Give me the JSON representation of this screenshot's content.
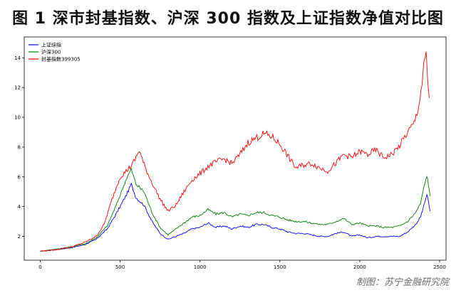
{
  "title": "图 1 深市封基指数、沪深 300 指数及上证指数净值对比图",
  "source": "制图：苏宁金融研究院",
  "colors": {
    "blue": "#0000ff",
    "green": "#008000",
    "red": "#ff0000",
    "axis": "#000000"
  },
  "chart_data": {
    "type": "line",
    "title": "图 1 深市封基指数、沪深 300 指数及上证指数净值对比图",
    "xlabel": "",
    "ylabel": "",
    "xlim": [
      -100,
      2540
    ],
    "ylim": [
      0.4,
      15.4
    ],
    "xticks": [
      0,
      500,
      1000,
      1500,
      2000,
      2500
    ],
    "yticks": [
      2,
      4,
      6,
      8,
      10,
      12,
      14
    ],
    "grid": false,
    "legend": "top-left",
    "series": [
      {
        "name": "上证综指",
        "color": "#0000ff",
        "points": [
          [
            0,
            1.0
          ],
          [
            100,
            1.1
          ],
          [
            200,
            1.25
          ],
          [
            280,
            1.45
          ],
          [
            350,
            1.8
          ],
          [
            420,
            2.5
          ],
          [
            480,
            3.6
          ],
          [
            540,
            4.8
          ],
          [
            570,
            5.5
          ],
          [
            600,
            4.6
          ],
          [
            650,
            4.1
          ],
          [
            700,
            3.0
          ],
          [
            750,
            2.2
          ],
          [
            800,
            1.8
          ],
          [
            850,
            2.0
          ],
          [
            900,
            2.2
          ],
          [
            950,
            2.5
          ],
          [
            1000,
            2.6
          ],
          [
            1050,
            2.9
          ],
          [
            1100,
            2.6
          ],
          [
            1150,
            2.7
          ],
          [
            1200,
            2.5
          ],
          [
            1250,
            2.7
          ],
          [
            1300,
            2.6
          ],
          [
            1350,
            2.8
          ],
          [
            1400,
            2.8
          ],
          [
            1450,
            2.6
          ],
          [
            1500,
            2.5
          ],
          [
            1550,
            2.3
          ],
          [
            1600,
            2.2
          ],
          [
            1650,
            2.2
          ],
          [
            1700,
            2.1
          ],
          [
            1750,
            2.0
          ],
          [
            1800,
            2.0
          ],
          [
            1850,
            2.2
          ],
          [
            1900,
            2.3
          ],
          [
            1950,
            2.0
          ],
          [
            2000,
            2.1
          ],
          [
            2050,
            1.9
          ],
          [
            2100,
            2.0
          ],
          [
            2150,
            2.0
          ],
          [
            2200,
            2.0
          ],
          [
            2250,
            2.0
          ],
          [
            2300,
            2.3
          ],
          [
            2350,
            2.8
          ],
          [
            2380,
            3.3
          ],
          [
            2400,
            4.0
          ],
          [
            2420,
            4.8
          ],
          [
            2430,
            4.3
          ],
          [
            2440,
            3.7
          ]
        ]
      },
      {
        "name": "沪深300",
        "color": "#008000",
        "points": [
          [
            0,
            1.0
          ],
          [
            100,
            1.15
          ],
          [
            200,
            1.3
          ],
          [
            280,
            1.5
          ],
          [
            350,
            1.9
          ],
          [
            420,
            2.7
          ],
          [
            480,
            4.2
          ],
          [
            540,
            5.9
          ],
          [
            570,
            6.5
          ],
          [
            600,
            5.5
          ],
          [
            650,
            5.0
          ],
          [
            700,
            3.6
          ],
          [
            750,
            2.6
          ],
          [
            800,
            2.1
          ],
          [
            850,
            2.5
          ],
          [
            900,
            2.9
          ],
          [
            950,
            3.3
          ],
          [
            1000,
            3.4
          ],
          [
            1050,
            3.8
          ],
          [
            1100,
            3.5
          ],
          [
            1150,
            3.6
          ],
          [
            1200,
            3.3
          ],
          [
            1250,
            3.5
          ],
          [
            1300,
            3.4
          ],
          [
            1350,
            3.6
          ],
          [
            1400,
            3.6
          ],
          [
            1450,
            3.4
          ],
          [
            1500,
            3.3
          ],
          [
            1550,
            3.1
          ],
          [
            1600,
            3.0
          ],
          [
            1650,
            3.0
          ],
          [
            1700,
            2.9
          ],
          [
            1750,
            2.8
          ],
          [
            1800,
            2.8
          ],
          [
            1850,
            3.0
          ],
          [
            1900,
            3.2
          ],
          [
            1950,
            2.8
          ],
          [
            2000,
            2.9
          ],
          [
            2050,
            2.7
          ],
          [
            2100,
            2.7
          ],
          [
            2150,
            2.6
          ],
          [
            2200,
            2.6
          ],
          [
            2250,
            2.7
          ],
          [
            2300,
            3.0
          ],
          [
            2350,
            3.6
          ],
          [
            2380,
            4.2
          ],
          [
            2400,
            5.2
          ],
          [
            2420,
            6.1
          ],
          [
            2430,
            5.5
          ],
          [
            2440,
            4.7
          ]
        ]
      },
      {
        "name": "封基指数399305",
        "color": "#ff0000",
        "points": [
          [
            0,
            1.0
          ],
          [
            100,
            1.1
          ],
          [
            200,
            1.3
          ],
          [
            280,
            1.6
          ],
          [
            350,
            2.0
          ],
          [
            400,
            2.8
          ],
          [
            450,
            4.5
          ],
          [
            500,
            6.0
          ],
          [
            550,
            6.5
          ],
          [
            580,
            6.9
          ],
          [
            600,
            7.3
          ],
          [
            620,
            7.8
          ],
          [
            650,
            6.8
          ],
          [
            700,
            5.6
          ],
          [
            750,
            4.5
          ],
          [
            800,
            3.7
          ],
          [
            850,
            4.1
          ],
          [
            900,
            5.0
          ],
          [
            950,
            5.8
          ],
          [
            1000,
            6.2
          ],
          [
            1050,
            6.7
          ],
          [
            1100,
            7.0
          ],
          [
            1150,
            7.2
          ],
          [
            1200,
            6.9
          ],
          [
            1250,
            7.5
          ],
          [
            1300,
            8.3
          ],
          [
            1350,
            8.6
          ],
          [
            1400,
            8.9
          ],
          [
            1450,
            8.7
          ],
          [
            1500,
            8.2
          ],
          [
            1550,
            7.4
          ],
          [
            1600,
            6.6
          ],
          [
            1650,
            6.8
          ],
          [
            1700,
            6.9
          ],
          [
            1750,
            6.6
          ],
          [
            1800,
            6.4
          ],
          [
            1850,
            6.9
          ],
          [
            1900,
            7.5
          ],
          [
            1950,
            7.3
          ],
          [
            2000,
            7.7
          ],
          [
            2050,
            7.5
          ],
          [
            2100,
            7.8
          ],
          [
            2150,
            7.3
          ],
          [
            2200,
            7.5
          ],
          [
            2250,
            8.1
          ],
          [
            2300,
            9.0
          ],
          [
            2340,
            9.6
          ],
          [
            2370,
            10.8
          ],
          [
            2390,
            12.3
          ],
          [
            2405,
            13.8
          ],
          [
            2415,
            14.2
          ],
          [
            2425,
            12.5
          ],
          [
            2435,
            11.3
          ]
        ]
      }
    ]
  }
}
